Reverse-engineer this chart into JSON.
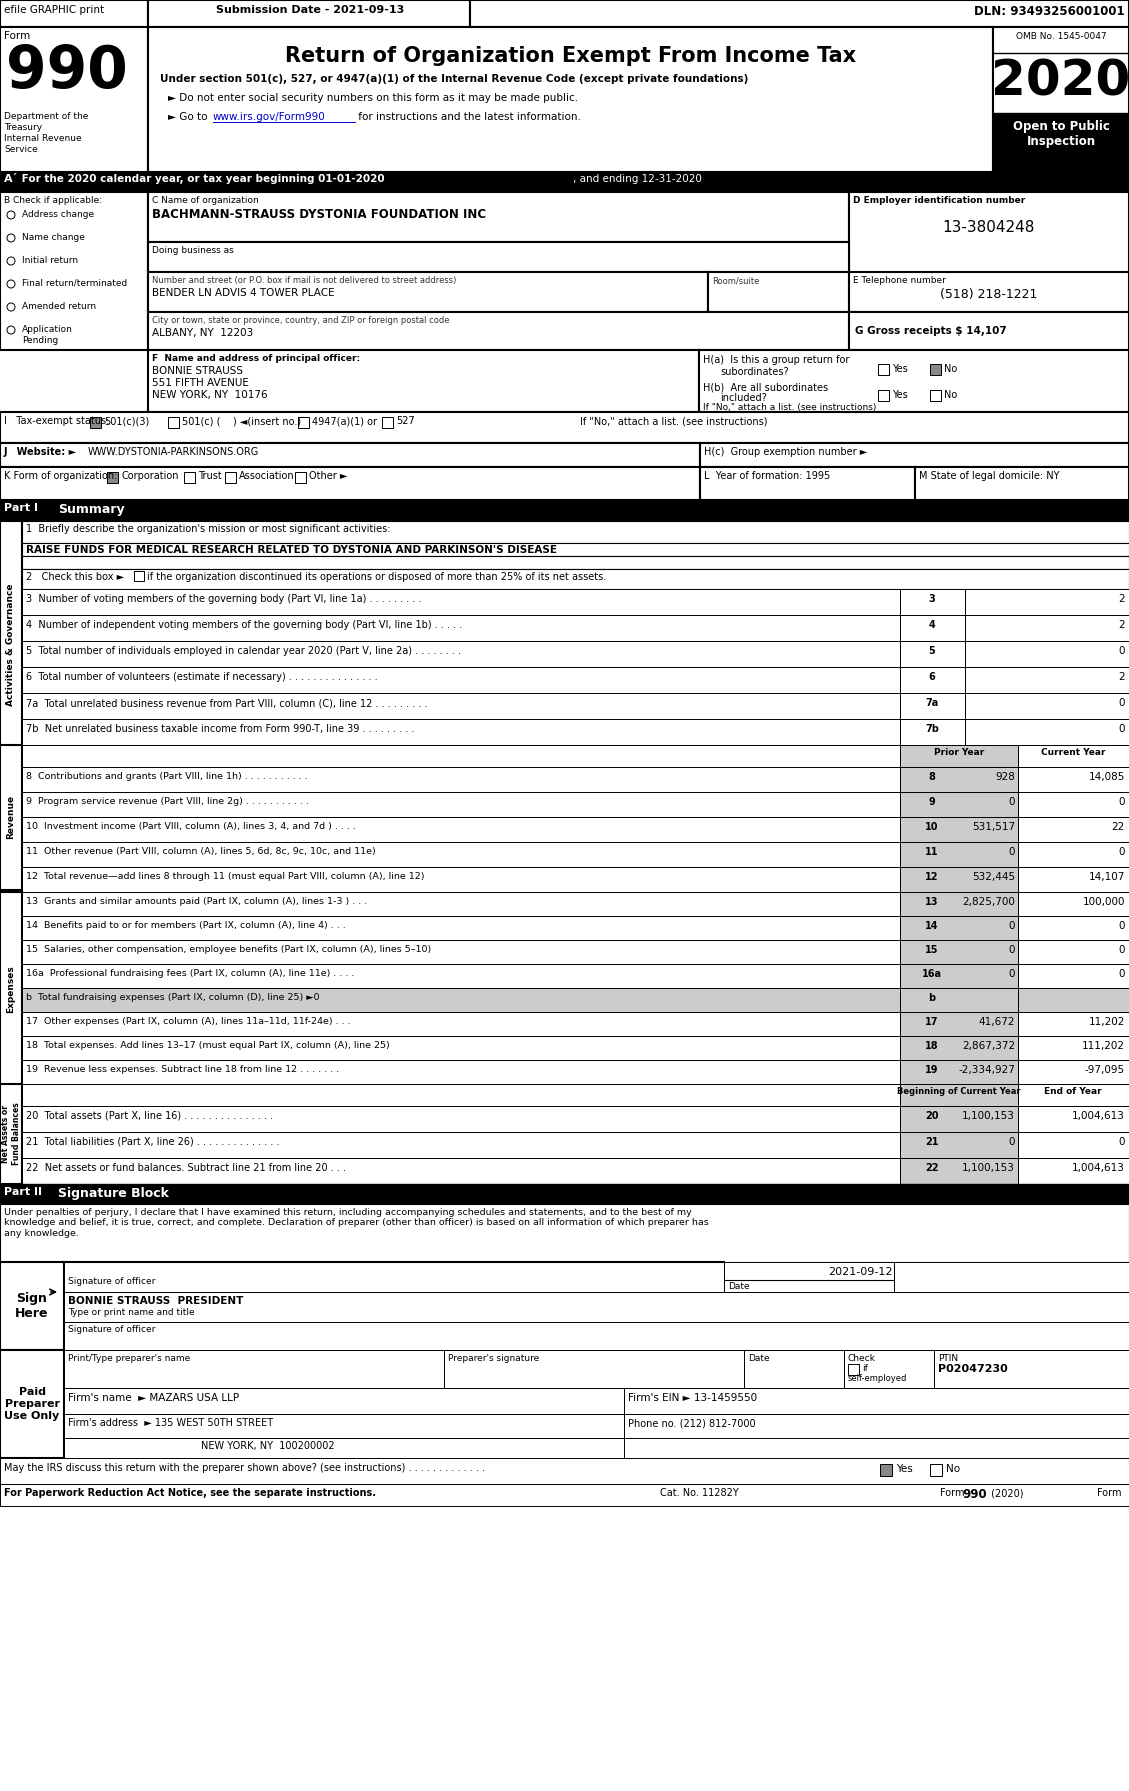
{
  "title": "Return of Organization Exempt From Income Tax",
  "form_number": "990",
  "year": "2020",
  "omb": "OMB No. 1545-0047",
  "submission_date": "Submission Date - 2021-09-13",
  "efile": "efile GRAPHIC print",
  "dln": "DLN: 93493256001001",
  "org_name": "BACHMANN-STRAUSS DYSTONIA FOUNDATION INC",
  "ein": "13-3804248",
  "doing_business_as": "Doing business as",
  "street": "BENDER LN ADVIS 4 TOWER PLACE",
  "room_suite_label": "Room/suite",
  "city_state_zip": "ALBANY, NY  12203",
  "telephone": "(518) 218-1221",
  "gross_receipts": "G Gross receipts $ 14,107",
  "principal_officer_label": "F  Name and address of principal officer:",
  "principal_officer": "BONNIE STRAUSS",
  "principal_officer_street": "551 FIFTH AVENUE",
  "principal_officer_city": "NEW YORK, NY  10176",
  "website": "WWW.DYSTONIA-PARKINSONS.ORG",
  "year_formation": "1995",
  "state_domicile": "NY",
  "mission": "RAISE FUNDS FOR MEDICAL RESEARCH RELATED TO DYSTONIA AND PARKINSON'S DISEASE",
  "line3_val": "2",
  "line4_val": "2",
  "line5_val": "0",
  "line6_val": "2",
  "line7a_val": "0",
  "line7b_val": "0",
  "prior_year_col": "Prior Year",
  "current_year_col": "Current Year",
  "line8_prior": "928",
  "line8_current": "14,085",
  "line9_prior": "0",
  "line9_current": "0",
  "line10_prior": "531,517",
  "line10_current": "22",
  "line11_prior": "0",
  "line11_current": "0",
  "line12_prior": "532,445",
  "line12_current": "14,107",
  "line13_prior": "2,825,700",
  "line13_current": "100,000",
  "line14_prior": "0",
  "line14_current": "0",
  "line15_prior": "0",
  "line15_current": "0",
  "line16a_prior": "0",
  "line16a_current": "0",
  "line17_prior": "41,672",
  "line17_current": "11,202",
  "line18_prior": "2,867,372",
  "line18_current": "111,202",
  "line19_prior": "-2,334,927",
  "line19_current": "-97,095",
  "beg_current_year": "Beginning of Current Year",
  "end_of_year": "End of Year",
  "line20_beg": "1,100,153",
  "line20_end": "1,004,613",
  "line21_beg": "0",
  "line21_end": "0",
  "line22_beg": "1,100,153",
  "line22_end": "1,004,613",
  "sign_date": "2021-09-12",
  "signer_name": "BONNIE STRAUSS  PRESIDENT",
  "preparer_firm": "MAZARS USA LLP",
  "preparer_address": "135 WEST 50TH STREET",
  "preparer_city": "NEW YORK, NY  100200002",
  "preparer_phone": "Phone no. (212) 812-7000",
  "preparer_ein": "Firm's EIN ► 13-1459550",
  "ptin": "P02047230",
  "cat_no": "Cat. No. 11282Y",
  "form_footer": "Form 990 (2020)"
}
